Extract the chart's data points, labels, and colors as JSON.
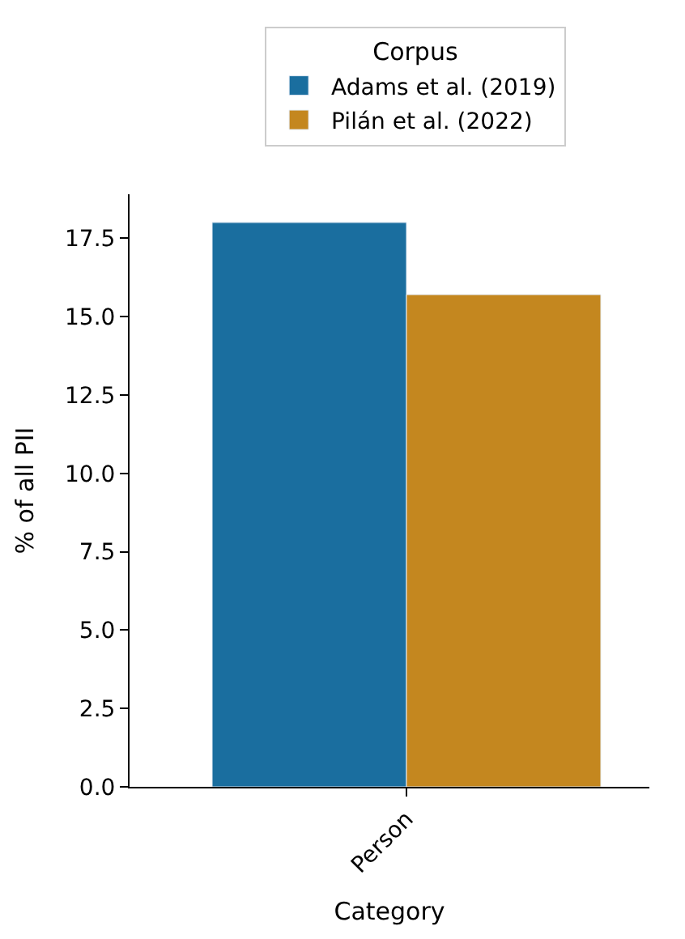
{
  "chart_data": {
    "type": "bar",
    "xlabel": "Category",
    "ylabel": "% of all PII",
    "legend_title": "Corpus",
    "legend": "top",
    "categories": [
      "Person"
    ],
    "series": [
      {
        "name": "Adams et al. (2019)",
        "color": "#1a6e9f",
        "values": [
          18.0
        ]
      },
      {
        "name": "Pilán et al. (2022)",
        "color": "#c4871f",
        "values": [
          15.7
        ]
      }
    ],
    "ylim": [
      0,
      18.9
    ],
    "yticks": [
      {
        "value": 0,
        "label": "0.0"
      },
      {
        "value": 2.5,
        "label": "2.5"
      },
      {
        "value": 5,
        "label": "5.0"
      },
      {
        "value": 7.5,
        "label": "7.5"
      },
      {
        "value": 10,
        "label": "10.0"
      },
      {
        "value": 12.5,
        "label": "12.5"
      },
      {
        "value": 15,
        "label": "15.0"
      },
      {
        "value": 17.5,
        "label": "17.5"
      }
    ]
  }
}
